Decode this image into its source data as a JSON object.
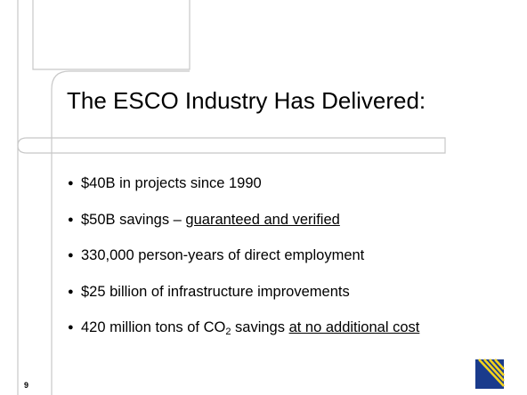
{
  "slide": {
    "title": "The ESCO Industry Has Delivered:",
    "bullets": [
      [
        {
          "text": "$40B in projects since 1990"
        }
      ],
      [
        {
          "text": "$50B savings – "
        },
        {
          "text": "guaranteed and verified",
          "underline": true
        }
      ],
      [
        {
          "text": "330,000 person-years of direct employment"
        }
      ],
      [
        {
          "text": "$25 billion of  infrastructure improvements"
        }
      ],
      [
        {
          "text": "420 million tons of CO"
        },
        {
          "text": "2",
          "subscript": true
        },
        {
          "text": " savings "
        },
        {
          "text": "at no additional cost",
          "underline": true
        }
      ]
    ],
    "page_number": "9"
  }
}
